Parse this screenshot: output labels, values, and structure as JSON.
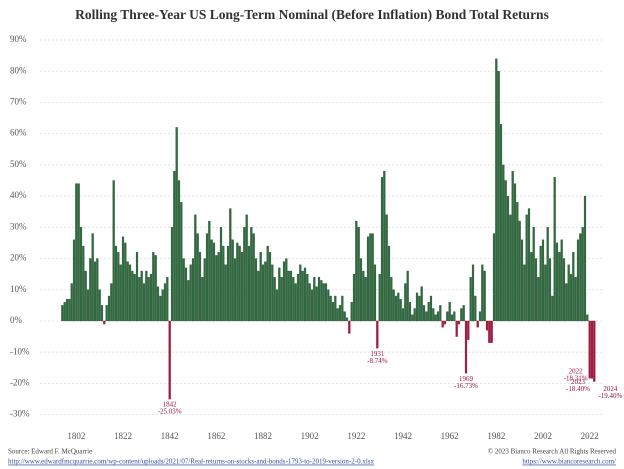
{
  "chart_data": {
    "type": "bar",
    "title": "Rolling Three-Year US Long-Term Nominal (Before Inflation) Bond Total Returns",
    "x": [
      1796,
      1797,
      1798,
      1799,
      1800,
      1801,
      1802,
      1803,
      1804,
      1805,
      1806,
      1807,
      1808,
      1809,
      1810,
      1811,
      1812,
      1813,
      1814,
      1815,
      1816,
      1817,
      1818,
      1819,
      1820,
      1821,
      1822,
      1823,
      1824,
      1825,
      1826,
      1827,
      1828,
      1829,
      1830,
      1831,
      1832,
      1833,
      1834,
      1835,
      1836,
      1837,
      1838,
      1839,
      1840,
      1841,
      1842,
      1843,
      1844,
      1845,
      1846,
      1847,
      1848,
      1849,
      1850,
      1851,
      1852,
      1853,
      1854,
      1855,
      1856,
      1857,
      1858,
      1859,
      1860,
      1861,
      1862,
      1863,
      1864,
      1865,
      1866,
      1867,
      1868,
      1869,
      1870,
      1871,
      1872,
      1873,
      1874,
      1875,
      1876,
      1877,
      1878,
      1879,
      1880,
      1881,
      1882,
      1883,
      1884,
      1885,
      1886,
      1887,
      1888,
      1889,
      1890,
      1891,
      1892,
      1893,
      1894,
      1895,
      1896,
      1897,
      1898,
      1899,
      1900,
      1901,
      1902,
      1903,
      1904,
      1905,
      1906,
      1907,
      1908,
      1909,
      1910,
      1911,
      1912,
      1913,
      1914,
      1915,
      1916,
      1917,
      1918,
      1919,
      1920,
      1921,
      1922,
      1923,
      1924,
      1925,
      1926,
      1927,
      1928,
      1929,
      1930,
      1931,
      1932,
      1933,
      1934,
      1935,
      1936,
      1937,
      1938,
      1939,
      1940,
      1941,
      1942,
      1943,
      1944,
      1945,
      1946,
      1947,
      1948,
      1949,
      1950,
      1951,
      1952,
      1953,
      1954,
      1955,
      1956,
      1957,
      1958,
      1959,
      1960,
      1961,
      1962,
      1963,
      1964,
      1965,
      1966,
      1967,
      1968,
      1969,
      1970,
      1971,
      1972,
      1973,
      1974,
      1975,
      1976,
      1977,
      1978,
      1979,
      1980,
      1981,
      1982,
      1983,
      1984,
      1985,
      1986,
      1987,
      1988,
      1989,
      1990,
      1991,
      1992,
      1993,
      1994,
      1995,
      1996,
      1997,
      1998,
      1999,
      2000,
      2001,
      2002,
      2003,
      2004,
      2005,
      2006,
      2007,
      2008,
      2009,
      2010,
      2011,
      2012,
      2013,
      2014,
      2015,
      2016,
      2017,
      2018,
      2019,
      2020,
      2021,
      2022,
      2023,
      2024
    ],
    "values": [
      5,
      6,
      7,
      7,
      12,
      26,
      44,
      44,
      30,
      24,
      16,
      10,
      20,
      28,
      19,
      20,
      10,
      5,
      -1,
      5,
      8,
      12,
      45,
      24,
      22,
      18,
      27,
      25,
      19,
      18,
      16,
      15,
      22,
      14,
      16,
      12,
      16,
      14,
      15,
      22,
      21,
      11,
      8,
      10,
      12,
      14,
      -25.03,
      30,
      48,
      62,
      45,
      38,
      20,
      17,
      13,
      18,
      20,
      34,
      28,
      22,
      14,
      20,
      28,
      32,
      26,
      25,
      21,
      22,
      30,
      24,
      18,
      24,
      36,
      26,
      20,
      25,
      24,
      22,
      30,
      34,
      24,
      30,
      28,
      20,
      16,
      22,
      18,
      19,
      24,
      22,
      18,
      14,
      10,
      17,
      14,
      19,
      20,
      16,
      16,
      14,
      12,
      15,
      18,
      16,
      17,
      15,
      12,
      10,
      14,
      11,
      14,
      13,
      12,
      12,
      10,
      8,
      6,
      8,
      4,
      5,
      8,
      3,
      1,
      -4,
      6,
      15,
      32,
      30,
      20,
      16,
      14,
      27,
      28,
      28,
      18,
      -8.74,
      15,
      46,
      48,
      34,
      24,
      14,
      10,
      8,
      9,
      7,
      4,
      12,
      16,
      6,
      2,
      4,
      9,
      8,
      11,
      5,
      3,
      6,
      8,
      4,
      2,
      3,
      5,
      -2,
      -1,
      3,
      6,
      2,
      3,
      -5,
      -1,
      4,
      5,
      -16.73,
      -6,
      14,
      18,
      8,
      -2,
      3,
      18,
      16,
      -3,
      -7,
      -7,
      28,
      84,
      80,
      63,
      50,
      45,
      40,
      34,
      48,
      44,
      38,
      32,
      26,
      18,
      34,
      36,
      22,
      30,
      20,
      14,
      24,
      26,
      18,
      30,
      20,
      8,
      46,
      25,
      22,
      26,
      20,
      12,
      18,
      15,
      22,
      14,
      26,
      28,
      30,
      40,
      2,
      -18.31,
      -18.4,
      -19.4
    ],
    "positive_color": "#2f6b3f",
    "negative_color": "#a8173f",
    "annotations": [
      {
        "x": 1842,
        "label": "-25.03%"
      },
      {
        "x": 1931,
        "label": "-8.74%"
      },
      {
        "x": 1969,
        "label": "-16.73%"
      },
      {
        "x": 2022,
        "label": "-18.31%"
      },
      {
        "x": 2023,
        "label": "-18.40%"
      },
      {
        "x": 2024,
        "label": "-19.40%"
      }
    ],
    "xlim": [
      1795,
      2026
    ],
    "xticks": [
      1802,
      1822,
      1842,
      1862,
      1882,
      1902,
      1922,
      1942,
      1962,
      1982,
      2002,
      2022
    ],
    "ylim": [
      -33,
      93
    ],
    "yticks": [
      {
        "value": -30,
        "label": "-30%"
      },
      {
        "value": -20,
        "label": "-20%"
      },
      {
        "value": -10,
        "label": "-10%"
      },
      {
        "value": 0,
        "label": "0%"
      },
      {
        "value": 10,
        "label": "10%"
      },
      {
        "value": 20,
        "label": "20%"
      },
      {
        "value": 30,
        "label": "30%"
      },
      {
        "value": 40,
        "label": "40%"
      },
      {
        "value": 50,
        "label": "50%"
      },
      {
        "value": 60,
        "label": "60%"
      },
      {
        "value": 70,
        "label": "70%"
      },
      {
        "value": 80,
        "label": "80%"
      },
      {
        "value": 90,
        "label": "90%"
      }
    ],
    "grid": true,
    "source": "Source: Edward F. McQuarrie",
    "source_url": "http://www.edwardfmcquarrie.com/wp-content/uploads/2021/07/Real-returns-on-stocks-and-bonds-1793-to-2019-version-2-0.xlsx",
    "copyright": "© 2023 Bianco Research All Rights Reserved",
    "copyright_url": "https://www.biancoresearch.com/"
  }
}
